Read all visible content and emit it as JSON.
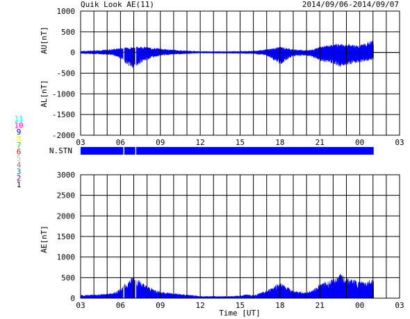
{
  "header": {
    "title": "Quik Look AE(11)",
    "date_range": "2014/09/06-2014/09/07"
  },
  "chart_data": [
    {
      "type": "area",
      "name": "top-panel",
      "ylabel_upper": "AU[nT]",
      "ylabel_lower": "AL[nT]",
      "ylim": [
        -2000,
        1000
      ],
      "yticks": [
        "1000",
        "500",
        "0",
        "-500",
        "-1000",
        "-1500",
        "-2000"
      ],
      "x_range_hours": [
        3,
        27
      ],
      "xticks": [
        "03",
        "06",
        "09",
        "12",
        "15",
        "18",
        "21",
        "00",
        "03"
      ],
      "grid": true,
      "color": "#0000ff",
      "data_end_hour": 25.05,
      "gaps_hour": [
        6.25,
        7.15
      ],
      "au_x": [
        3,
        4,
        5,
        5.5,
        6,
        6.5,
        7,
        7.5,
        8,
        8.5,
        9,
        10,
        11,
        12,
        13,
        14,
        15,
        16,
        17,
        17.5,
        18,
        18.5,
        19,
        20,
        20.5,
        21,
        22,
        22.5,
        23,
        24,
        25,
        25.05
      ],
      "au_y": [
        25,
        40,
        55,
        70,
        90,
        110,
        110,
        120,
        110,
        90,
        80,
        50,
        35,
        20,
        20,
        20,
        25,
        30,
        60,
        85,
        120,
        90,
        60,
        45,
        60,
        120,
        160,
        180,
        170,
        150,
        250,
        250
      ],
      "al_x": [
        3,
        4,
        5,
        5.5,
        6,
        6.5,
        7,
        7.5,
        8,
        8.5,
        9,
        10,
        11,
        12,
        13,
        14,
        15,
        16,
        17,
        17.5,
        18,
        18.5,
        19,
        20,
        20.5,
        21,
        22,
        22.5,
        23,
        24,
        25,
        25.05
      ],
      "al_y": [
        -20,
        -30,
        -40,
        -60,
        -120,
        -250,
        -350,
        -220,
        -150,
        -100,
        -60,
        -40,
        -25,
        -10,
        -15,
        -15,
        -20,
        -25,
        -60,
        -150,
        -250,
        -150,
        -70,
        -60,
        -100,
        -180,
        -220,
        -300,
        -250,
        -200,
        -150,
        -150
      ]
    },
    {
      "type": "station-bar",
      "label": "N.STN",
      "legend_numbers": [
        "11",
        "10",
        "9",
        "8",
        "7",
        "6",
        "5",
        "4",
        "3",
        "2",
        "1"
      ],
      "legend_colors": [
        "#00ffff",
        "#ff00ff",
        "#0000ff",
        "#ffff00",
        "#00ff00",
        "#ff0000",
        "#c0c0c0",
        "#808080",
        "#008080",
        "#800080",
        "#000080"
      ],
      "active_station": "11",
      "bar_color": "#0000ff",
      "x_range_hours": [
        3,
        27
      ],
      "data_end_hour": 25.05,
      "gaps_hour": [
        6.25,
        7.15
      ]
    },
    {
      "type": "area",
      "name": "bottom-panel",
      "ylabel": "AE[nT]",
      "xlabel": "Time [UT]",
      "ylim": [
        0,
        3000
      ],
      "yticks": [
        "3000",
        "2500",
        "2000",
        "1500",
        "1000",
        "500",
        "0"
      ],
      "x_range_hours": [
        3,
        27
      ],
      "xticks": [
        "03",
        "06",
        "09",
        "12",
        "15",
        "18",
        "21",
        "00",
        "03"
      ],
      "grid": true,
      "color": "#0000ff",
      "data_end_hour": 25.05,
      "gaps_hour": [
        6.25,
        7.15
      ],
      "x": [
        3,
        4,
        5,
        5.5,
        6,
        6.5,
        7,
        7.5,
        8,
        8.5,
        9,
        10,
        11,
        12,
        13,
        14,
        15,
        15.5,
        16,
        17,
        17.5,
        18,
        18.5,
        19,
        20,
        20.5,
        21,
        22,
        22.5,
        23,
        24,
        25,
        25.05
      ],
      "y": [
        60,
        70,
        90,
        110,
        200,
        330,
        480,
        350,
        250,
        190,
        140,
        100,
        70,
        40,
        40,
        40,
        50,
        80,
        60,
        150,
        250,
        330,
        240,
        150,
        120,
        170,
        300,
        380,
        500,
        420,
        350,
        400,
        400
      ]
    }
  ]
}
